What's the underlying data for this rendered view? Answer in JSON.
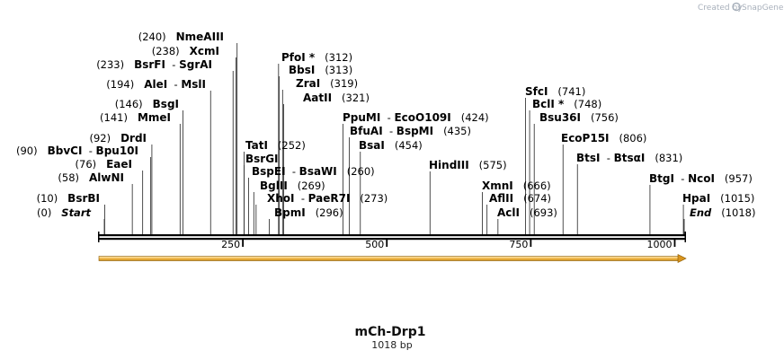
{
  "credit": {
    "created_by": "Created by",
    "brand": "SnapGene"
  },
  "sequence": {
    "name": "mCh-Drp1",
    "length_label": "1018 bp",
    "length": 1018
  },
  "ruler": {
    "ticks": [
      250,
      500,
      750,
      1000
    ]
  },
  "colors": {
    "feature_fill": "#f6c35a",
    "feature_stroke": "#8a5a00",
    "backbone": "#000000"
  },
  "sites": [
    {
      "id": "start",
      "pos": 0,
      "parts": [
        [
          "Start",
          "i"
        ]
      ],
      "num": "(0)",
      "side": "L"
    },
    {
      "id": "bsrbi",
      "pos": 10,
      "parts": [
        [
          "BsrBI",
          "b"
        ]
      ],
      "num": "(10)",
      "side": "L"
    },
    {
      "id": "alwni",
      "pos": 58,
      "parts": [
        [
          "AlwNI",
          "b"
        ]
      ],
      "num": "(58)",
      "side": "L"
    },
    {
      "id": "eaei",
      "pos": 76,
      "parts": [
        [
          "EaeI",
          "b"
        ]
      ],
      "num": "(76)",
      "side": "L"
    },
    {
      "id": "bbvci",
      "pos": 90,
      "parts": [
        [
          "BbvCI",
          "b"
        ],
        [
          "  - ",
          "n"
        ],
        [
          "Bpu10I",
          "b"
        ]
      ],
      "num": "(90)",
      "side": "L"
    },
    {
      "id": "drdi",
      "pos": 92,
      "parts": [
        [
          "DrdI",
          "b"
        ]
      ],
      "num": "(92)",
      "side": "L"
    },
    {
      "id": "mmei",
      "pos": 141,
      "parts": [
        [
          "MmeI",
          "b"
        ]
      ],
      "num": "(141)",
      "side": "L"
    },
    {
      "id": "bsgi",
      "pos": 146,
      "parts": [
        [
          "BsgI",
          "b"
        ]
      ],
      "num": "(146)",
      "side": "L"
    },
    {
      "id": "alei",
      "pos": 194,
      "parts": [
        [
          "AleI",
          "b"
        ],
        [
          "  - ",
          "n"
        ],
        [
          "MslI",
          "b"
        ]
      ],
      "num": "(194)",
      "side": "L"
    },
    {
      "id": "bsrfi",
      "pos": 233,
      "parts": [
        [
          "BsrFI",
          "b"
        ],
        [
          "  - ",
          "n"
        ],
        [
          "SgrAI",
          "b"
        ]
      ],
      "num": "(233)",
      "side": "L"
    },
    {
      "id": "xcmi",
      "pos": 238,
      "parts": [
        [
          "XcmI",
          "b"
        ]
      ],
      "num": "(238)",
      "side": "L"
    },
    {
      "id": "nmeaiii",
      "pos": 240,
      "parts": [
        [
          "NmeAIII",
          "b"
        ]
      ],
      "num": "(240)",
      "side": "L"
    },
    {
      "id": "tati",
      "pos": 252,
      "parts": [
        [
          "TatI",
          "b"
        ]
      ],
      "num": "(252)",
      "side": "R"
    },
    {
      "id": "bsrgi",
      "pos": 252,
      "parts": [
        [
          "BsrGI",
          "b"
        ]
      ],
      "num": "",
      "side": "R"
    },
    {
      "id": "bspei",
      "pos": 260,
      "parts": [
        [
          "BspEI",
          "b"
        ],
        [
          "  - ",
          "n"
        ],
        [
          "BsaWI",
          "b"
        ]
      ],
      "num": "(260)",
      "side": "R"
    },
    {
      "id": "bglii",
      "pos": 269,
      "parts": [
        [
          "BglII",
          "b"
        ]
      ],
      "num": "(269)",
      "side": "R"
    },
    {
      "id": "xhoi",
      "pos": 273,
      "parts": [
        [
          "XhoI",
          "b"
        ],
        [
          "  - ",
          "n"
        ],
        [
          "PaeR7I",
          "b"
        ]
      ],
      "num": "(273)",
      "side": "R"
    },
    {
      "id": "bpmi",
      "pos": 296,
      "parts": [
        [
          "BpmI",
          "b"
        ]
      ],
      "num": "(296)",
      "side": "R"
    },
    {
      "id": "pfoi",
      "pos": 312,
      "parts": [
        [
          "PfoI *",
          "b"
        ]
      ],
      "num": "(312)",
      "side": "R"
    },
    {
      "id": "bbsi",
      "pos": 313,
      "parts": [
        [
          "BbsI",
          "b"
        ]
      ],
      "num": "(313)",
      "side": "R"
    },
    {
      "id": "zrai",
      "pos": 319,
      "parts": [
        [
          "ZraI",
          "b"
        ]
      ],
      "num": "(319)",
      "side": "R"
    },
    {
      "id": "aatii",
      "pos": 321,
      "parts": [
        [
          "AatII",
          "b"
        ]
      ],
      "num": "(321)",
      "side": "R"
    },
    {
      "id": "ppumi",
      "pos": 424,
      "parts": [
        [
          "PpuMI",
          "b"
        ],
        [
          "  - ",
          "n"
        ],
        [
          "EcoO109I",
          "b"
        ]
      ],
      "num": "(424)",
      "side": "R"
    },
    {
      "id": "bfuai",
      "pos": 435,
      "parts": [
        [
          "BfuAI",
          "b"
        ],
        [
          "  - ",
          "n"
        ],
        [
          "BspMI",
          "b"
        ]
      ],
      "num": "(435)",
      "side": "R"
    },
    {
      "id": "bsai",
      "pos": 454,
      "parts": [
        [
          "BsaI",
          "b"
        ]
      ],
      "num": "(454)",
      "side": "R"
    },
    {
      "id": "hindiii",
      "pos": 575,
      "parts": [
        [
          "HindIII",
          "b"
        ]
      ],
      "num": "(575)",
      "side": "R"
    },
    {
      "id": "xmni",
      "pos": 666,
      "parts": [
        [
          "XmnI",
          "b"
        ]
      ],
      "num": "(666)",
      "side": "R"
    },
    {
      "id": "aflii",
      "pos": 674,
      "parts": [
        [
          "AflII",
          "b"
        ]
      ],
      "num": "(674)",
      "side": "R"
    },
    {
      "id": "acli",
      "pos": 693,
      "parts": [
        [
          "AclI",
          "b"
        ]
      ],
      "num": "(693)",
      "side": "R"
    },
    {
      "id": "sfci",
      "pos": 741,
      "parts": [
        [
          "SfcI",
          "b"
        ]
      ],
      "num": "(741)",
      "side": "R"
    },
    {
      "id": "bcli",
      "pos": 748,
      "parts": [
        [
          "BclI *",
          "b"
        ]
      ],
      "num": "(748)",
      "side": "R"
    },
    {
      "id": "bsu36i",
      "pos": 756,
      "parts": [
        [
          "Bsu36I",
          "b"
        ]
      ],
      "num": "(756)",
      "side": "R"
    },
    {
      "id": "ecop15i",
      "pos": 806,
      "parts": [
        [
          "EcoP15I",
          "b"
        ]
      ],
      "num": "(806)",
      "side": "R"
    },
    {
      "id": "btsi",
      "pos": 831,
      "parts": [
        [
          "BtsI",
          "b"
        ],
        [
          "  - ",
          "n"
        ],
        [
          "BtsαI",
          "b"
        ]
      ],
      "num": "(831)",
      "side": "R"
    },
    {
      "id": "btgi",
      "pos": 957,
      "parts": [
        [
          "BtgI",
          "b"
        ],
        [
          "  - ",
          "n"
        ],
        [
          "NcoI",
          "b"
        ]
      ],
      "num": "(957)",
      "side": "R"
    },
    {
      "id": "hpai",
      "pos": 1015,
      "parts": [
        [
          "HpaI",
          "b"
        ]
      ],
      "num": "(1015)",
      "side": "R"
    },
    {
      "id": "end",
      "pos": 1018,
      "parts": [
        [
          "End",
          "i"
        ]
      ],
      "num": "(1018)",
      "side": "R"
    }
  ]
}
